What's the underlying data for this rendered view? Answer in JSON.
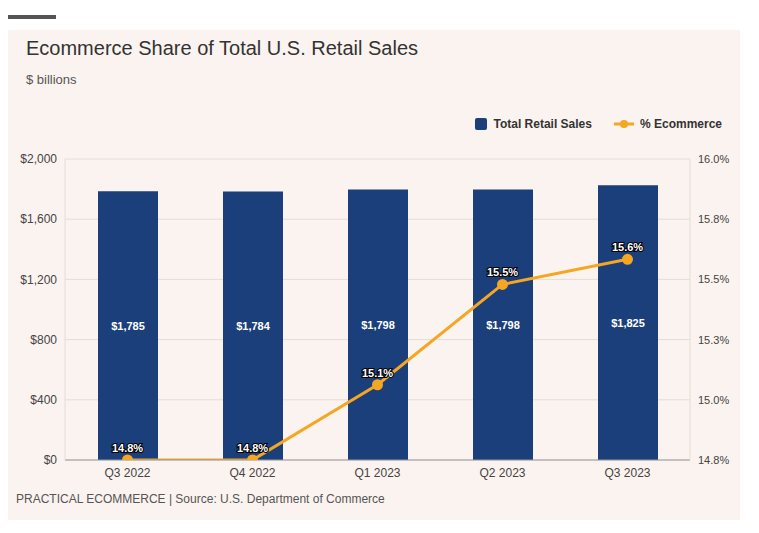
{
  "chart_data": {
    "type": "bar",
    "title": "Ecommerce Share of Total U.S. Retail Sales",
    "subtitle": "$ billions",
    "source": "PRACTICAL ECOMMERCE | Source: U.S. Department of Commerce",
    "categories": [
      "Q3 2022",
      "Q4 2022",
      "Q1 2023",
      "Q2 2023",
      "Q3 2023"
    ],
    "series": [
      {
        "name": "Total Retail Sales",
        "type": "bar",
        "color": "#1b3f7a",
        "values": [
          1785,
          1784,
          1798,
          1798,
          1825
        ],
        "value_labels": [
          "$1,785",
          "$1,784",
          "$1,798",
          "$1,798",
          "$1,825"
        ]
      },
      {
        "name": "% Ecommerce",
        "type": "line",
        "color": "#f5a623",
        "axis": "y2",
        "marker": "circle",
        "values": [
          14.8,
          14.8,
          15.1,
          15.5,
          15.6
        ],
        "value_labels": [
          "14.8%",
          "14.8%",
          "15.1%",
          "15.5%",
          "15.6%"
        ]
      }
    ],
    "ylim": [
      0,
      2000
    ],
    "yticks": [
      {
        "value": 0,
        "label": "$0"
      },
      {
        "value": 400,
        "label": "$400"
      },
      {
        "value": 800,
        "label": "$800"
      },
      {
        "value": 1200,
        "label": "$1,200"
      },
      {
        "value": 1600,
        "label": "$1,600"
      },
      {
        "value": 2000,
        "label": "$2,000"
      }
    ],
    "y2lim": [
      14.8,
      16.0
    ],
    "y2ticks": [
      {
        "value": 14.8,
        "label": "14.8%"
      },
      {
        "value": 15.04,
        "label": "15.0%"
      },
      {
        "value": 15.28,
        "label": "15.3%"
      },
      {
        "value": 15.52,
        "label": "15.5%"
      },
      {
        "value": 15.76,
        "label": "15.8%"
      },
      {
        "value": 16.0,
        "label": "16.0%"
      }
    ],
    "grid": true,
    "legend": "top-right",
    "data_labels": true
  }
}
